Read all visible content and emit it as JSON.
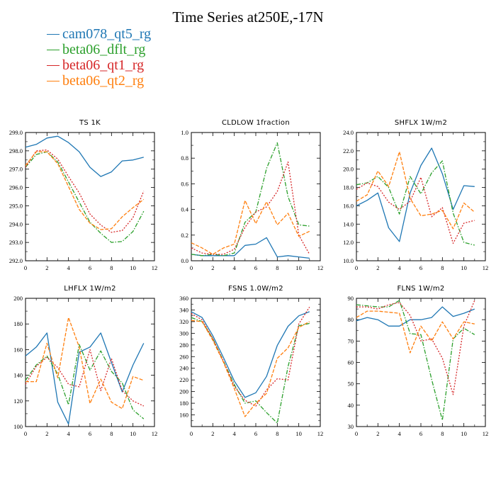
{
  "title": "Time Series at250E,-17N",
  "legend": [
    {
      "name": "cam078_qt5_rg",
      "color": "#1f77b4"
    },
    {
      "name": "beta06_dflt_rg",
      "color": "#2ca02c"
    },
    {
      "name": "beta06_qt1_rg",
      "color": "#d62728"
    },
    {
      "name": "beta06_qt2_rg",
      "color": "#ff7f0e"
    }
  ],
  "chart_data": [
    {
      "type": "line",
      "title": "TS 1K",
      "xlim": [
        0,
        12
      ],
      "xticks": [
        0,
        2,
        4,
        6,
        8,
        10,
        12
      ],
      "ylim": [
        292.0,
        299.0
      ],
      "yticks": [
        292.0,
        293.0,
        294.0,
        295.0,
        296.0,
        297.0,
        298.0,
        299.0
      ],
      "ytick_labels": [
        "292.0",
        "293.0",
        "294.0",
        "295.0",
        "296.0",
        "297.0",
        "298.0",
        "299.0"
      ],
      "x": [
        0,
        1,
        2,
        3,
        4,
        5,
        6,
        7,
        8,
        9,
        10,
        11
      ],
      "series": [
        {
          "name": "cam078_qt5_rg",
          "values": [
            298.2,
            298.35,
            298.7,
            298.8,
            298.45,
            297.95,
            297.1,
            296.6,
            296.85,
            297.45,
            297.5,
            297.65
          ]
        },
        {
          "name": "beta06_dflt_rg",
          "values": [
            297.1,
            297.8,
            297.95,
            297.4,
            296.3,
            295.2,
            294.1,
            293.5,
            293.0,
            293.05,
            293.6,
            294.7
          ]
        },
        {
          "name": "beta06_qt1_rg",
          "values": [
            297.1,
            298.0,
            298.05,
            297.55,
            296.6,
            295.7,
            294.55,
            293.95,
            293.55,
            293.65,
            294.35,
            295.8
          ]
        },
        {
          "name": "beta06_qt2_rg",
          "values": [
            297.2,
            297.95,
            297.95,
            297.3,
            296.05,
            294.8,
            294.05,
            293.7,
            293.75,
            294.4,
            294.9,
            295.35
          ]
        }
      ]
    },
    {
      "type": "line",
      "title": "CLDLOW 1fraction",
      "xlim": [
        0,
        12
      ],
      "xticks": [
        0,
        2,
        4,
        6,
        8,
        10,
        12
      ],
      "ylim": [
        0.0,
        1.0
      ],
      "yticks": [
        0.0,
        0.2,
        0.4,
        0.6,
        0.8,
        1.0
      ],
      "ytick_labels": [
        "0.0",
        "0.2",
        "0.4",
        "0.6",
        "0.8",
        "1.0"
      ],
      "x": [
        0,
        1,
        2,
        3,
        4,
        5,
        6,
        7,
        8,
        9,
        10,
        11
      ],
      "series": [
        {
          "name": "cam078_qt5_rg",
          "values": [
            0.05,
            0.04,
            0.04,
            0.04,
            0.04,
            0.12,
            0.13,
            0.18,
            0.03,
            0.04,
            0.03,
            0.02
          ]
        },
        {
          "name": "beta06_dflt_rg",
          "values": [
            0.05,
            0.04,
            0.05,
            0.04,
            0.06,
            0.3,
            0.38,
            0.72,
            0.92,
            0.5,
            0.28,
            0.27
          ]
        },
        {
          "name": "beta06_qt1_rg",
          "values": [
            0.1,
            0.06,
            0.05,
            0.05,
            0.09,
            0.26,
            0.38,
            0.42,
            0.54,
            0.77,
            0.2,
            0.05
          ]
        },
        {
          "name": "beta06_qt2_rg",
          "values": [
            0.14,
            0.1,
            0.05,
            0.1,
            0.13,
            0.47,
            0.29,
            0.46,
            0.28,
            0.37,
            0.19,
            0.23
          ]
        }
      ]
    },
    {
      "type": "line",
      "title": "SHFLX 1W/m2",
      "xlim": [
        0,
        12
      ],
      "xticks": [
        0,
        2,
        4,
        6,
        8,
        10,
        12
      ],
      "ylim": [
        10.0,
        24.0
      ],
      "yticks": [
        10.0,
        12.0,
        14.0,
        16.0,
        18.0,
        20.0,
        22.0,
        24.0
      ],
      "ytick_labels": [
        "10.0",
        "12.0",
        "14.0",
        "16.0",
        "18.0",
        "20.0",
        "22.0",
        "24.0"
      ],
      "x": [
        0,
        1,
        2,
        3,
        4,
        5,
        6,
        7,
        8,
        9,
        10,
        11
      ],
      "series": [
        {
          "name": "cam078_qt5_rg",
          "values": [
            16.0,
            16.6,
            17.4,
            13.6,
            12.1,
            17.4,
            20.4,
            22.3,
            19.5,
            15.6,
            18.2,
            18.1
          ]
        },
        {
          "name": "beta06_dflt_rg",
          "values": [
            18.3,
            18.5,
            19.2,
            18.0,
            15.1,
            19.2,
            17.3,
            19.6,
            20.9,
            15.2,
            12.0,
            11.7
          ]
        },
        {
          "name": "beta06_qt1_rg",
          "values": [
            17.8,
            18.5,
            18.1,
            16.4,
            15.6,
            16.5,
            19.1,
            14.8,
            15.8,
            11.9,
            14.1,
            14.4
          ]
        },
        {
          "name": "beta06_qt2_rg",
          "values": [
            16.5,
            17.2,
            19.8,
            18.1,
            21.9,
            16.8,
            14.9,
            15.1,
            15.5,
            13.5,
            16.3,
            15.3
          ]
        }
      ]
    },
    {
      "type": "line",
      "title": "LHFLX 1W/m2",
      "xlim": [
        0,
        12
      ],
      "xticks": [
        0,
        2,
        4,
        6,
        8,
        10,
        12
      ],
      "ylim": [
        100,
        200
      ],
      "yticks": [
        100,
        120,
        140,
        160,
        180,
        200
      ],
      "ytick_labels": [
        "100",
        "120",
        "140",
        "160",
        "180",
        "200"
      ],
      "x": [
        0,
        1,
        2,
        3,
        4,
        5,
        6,
        7,
        8,
        9,
        10,
        11
      ],
      "series": [
        {
          "name": "cam078_qt5_rg",
          "values": [
            155,
            162,
            173,
            119,
            102,
            158,
            162,
            173,
            150,
            127,
            148,
            165
          ]
        },
        {
          "name": "beta06_dflt_rg",
          "values": [
            136,
            148,
            155,
            141,
            117,
            164,
            144,
            159,
            143,
            134,
            113,
            106
          ]
        },
        {
          "name": "beta06_qt1_rg",
          "values": [
            133,
            147,
            154,
            146,
            133,
            131,
            160,
            128,
            153,
            128,
            120,
            116
          ]
        },
        {
          "name": "beta06_qt2_rg",
          "values": [
            135,
            135,
            165,
            138,
            185,
            162,
            118,
            137,
            119,
            114,
            139,
            136
          ]
        }
      ]
    },
    {
      "type": "line",
      "title": "FSNS 1.0W/m2",
      "xlim": [
        0,
        12
      ],
      "xticks": [
        0,
        2,
        4,
        6,
        8,
        10,
        12
      ],
      "ylim": [
        140,
        360
      ],
      "yticks": [
        140,
        160,
        180,
        200,
        220,
        240,
        260,
        280,
        300,
        320,
        340,
        360
      ],
      "ytick_labels": [
        "",
        "160",
        "180",
        "200",
        "220",
        "240",
        "260",
        "280",
        "300",
        "320",
        "340",
        "360"
      ],
      "x": [
        0,
        1,
        2,
        3,
        4,
        5,
        6,
        7,
        8,
        9,
        10,
        11
      ],
      "series": [
        {
          "name": "cam078_qt5_rg",
          "values": [
            337,
            327,
            296,
            258,
            218,
            190,
            198,
            226,
            279,
            312,
            330,
            337
          ]
        },
        {
          "name": "beta06_dflt_rg",
          "values": [
            327,
            320,
            291,
            252,
            212,
            180,
            184,
            164,
            146,
            243,
            313,
            317
          ]
        },
        {
          "name": "beta06_qt1_rg",
          "values": [
            334,
            323,
            291,
            252,
            209,
            185,
            175,
            203,
            222,
            220,
            316,
            345
          ]
        },
        {
          "name": "beta06_qt2_rg",
          "values": [
            322,
            320,
            288,
            250,
            205,
            157,
            180,
            197,
            257,
            275,
            310,
            320
          ]
        }
      ]
    },
    {
      "type": "line",
      "title": "FLNS 1W/m2",
      "xlim": [
        0,
        12
      ],
      "xticks": [
        0,
        2,
        4,
        6,
        8,
        10,
        12
      ],
      "ylim": [
        30,
        90
      ],
      "yticks": [
        30,
        40,
        50,
        60,
        70,
        80,
        90
      ],
      "ytick_labels": [
        "30",
        "40",
        "50",
        "60",
        "70",
        "80",
        "90"
      ],
      "x": [
        0,
        1,
        2,
        3,
        4,
        5,
        6,
        7,
        8,
        9,
        10,
        11
      ],
      "series": [
        {
          "name": "cam078_qt5_rg",
          "values": [
            79.5,
            81,
            80,
            77,
            77,
            80,
            80,
            81,
            86,
            81.5,
            83,
            85
          ]
        },
        {
          "name": "beta06_dflt_rg",
          "values": [
            87,
            86.5,
            86,
            86,
            89,
            73.5,
            73,
            52,
            33,
            71,
            76,
            73
          ]
        },
        {
          "name": "beta06_qt1_rg",
          "values": [
            86,
            86,
            85,
            87,
            88,
            82,
            70,
            71,
            62,
            45,
            77,
            89
          ]
        },
        {
          "name": "beta06_qt2_rg",
          "values": [
            81,
            84,
            84,
            83.5,
            83,
            64.5,
            77,
            70,
            79,
            71,
            79,
            78
          ]
        }
      ]
    }
  ]
}
